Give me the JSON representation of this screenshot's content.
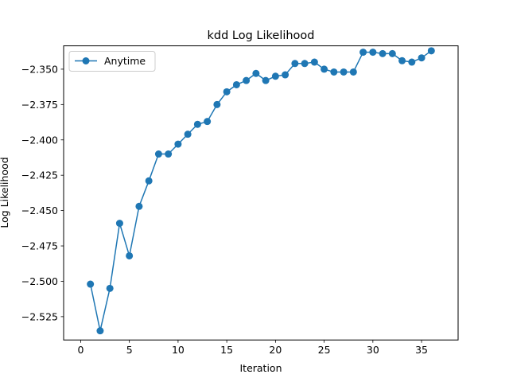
{
  "chart_data": {
    "type": "line",
    "title": "kdd Log Likelihood",
    "xlabel": "Iteration",
    "ylabel": "Log Likelihood",
    "xlim": [
      -1.75,
      38.75
    ],
    "ylim": [
      -2.5415,
      -2.3335
    ],
    "xticks": [
      0,
      5,
      10,
      15,
      20,
      25,
      30,
      35
    ],
    "xtick_labels": [
      "0",
      "5",
      "10",
      "15",
      "20",
      "25",
      "30",
      "35"
    ],
    "yticks": [
      -2.35,
      -2.375,
      -2.4,
      -2.425,
      -2.45,
      -2.475,
      -2.5,
      -2.525
    ],
    "ytick_labels": [
      "−2.350",
      "−2.375",
      "−2.400",
      "−2.425",
      "−2.450",
      "−2.475",
      "−2.500",
      "−2.525"
    ],
    "legend_position": "top-left",
    "grid": false,
    "series": [
      {
        "name": "Anytime",
        "color": "#1f77b4",
        "marker": "circle",
        "x": [
          1,
          2,
          3,
          4,
          5,
          6,
          7,
          8,
          9,
          10,
          11,
          12,
          13,
          14,
          15,
          16,
          17,
          18,
          19,
          20,
          21,
          22,
          23,
          24,
          25,
          26,
          27,
          28,
          29,
          30,
          31,
          32,
          33,
          34,
          35,
          36
        ],
        "y": [
          -2.502,
          -2.535,
          -2.505,
          -2.459,
          -2.482,
          -2.447,
          -2.429,
          -2.41,
          -2.41,
          -2.403,
          -2.396,
          -2.389,
          -2.387,
          -2.375,
          -2.366,
          -2.361,
          -2.358,
          -2.353,
          -2.358,
          -2.355,
          -2.354,
          -2.346,
          -2.346,
          -2.345,
          -2.35,
          -2.352,
          -2.352,
          -2.352,
          -2.338,
          -2.338,
          -2.339,
          -2.339,
          -2.344,
          -2.345,
          -2.342,
          -2.337
        ]
      }
    ]
  }
}
